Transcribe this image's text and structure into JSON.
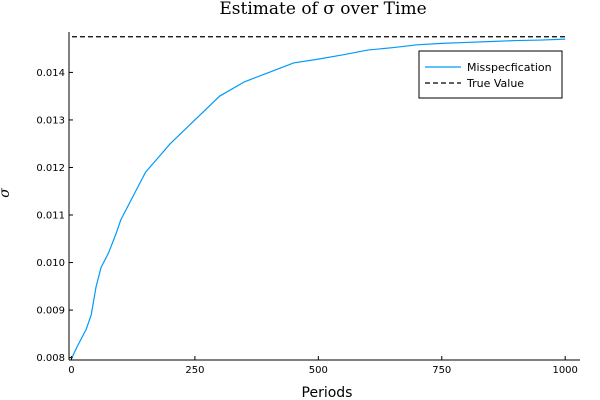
{
  "chart_data": {
    "type": "line",
    "title": "Estimate of σ over Time",
    "xlabel": "Periods",
    "ylabel": "σ",
    "xlim": [
      -5,
      1030
    ],
    "ylim": [
      0.00795,
      0.01485
    ],
    "xticks": [
      0,
      250,
      500,
      750,
      1000
    ],
    "xtick_labels": [
      "0",
      "250",
      "500",
      "750",
      "1000"
    ],
    "yticks": [
      0.008,
      0.009,
      0.01,
      0.011,
      0.012,
      0.013,
      0.014
    ],
    "ytick_labels": [
      "0.008",
      "0.009",
      "0.010",
      "0.011",
      "0.012",
      "0.013",
      "0.014"
    ],
    "grid": false,
    "legend_position": "top-right",
    "series": [
      {
        "name": "Misspecfication",
        "style": "solid",
        "color": "#009AFA",
        "x": [
          1,
          10,
          20,
          30,
          40,
          50,
          60,
          75,
          90,
          100,
          125,
          150,
          175,
          200,
          250,
          300,
          350,
          400,
          450,
          500,
          550,
          600,
          650,
          700,
          750,
          800,
          850,
          900,
          950,
          1000
        ],
        "y": [
          0.008,
          0.0082,
          0.0084,
          0.0086,
          0.0089,
          0.0095,
          0.0099,
          0.0102,
          0.0106,
          0.0109,
          0.0114,
          0.0119,
          0.0122,
          0.0125,
          0.013,
          0.0135,
          0.0138,
          0.014,
          0.0142,
          0.01428,
          0.01437,
          0.01447,
          0.01452,
          0.01458,
          0.01461,
          0.01463,
          0.01465,
          0.01467,
          0.01468,
          0.0147
        ]
      },
      {
        "name": "True Value",
        "style": "dashed",
        "color": "#000000",
        "x": [
          1,
          1000
        ],
        "y": [
          0.01475,
          0.01475
        ]
      }
    ]
  }
}
